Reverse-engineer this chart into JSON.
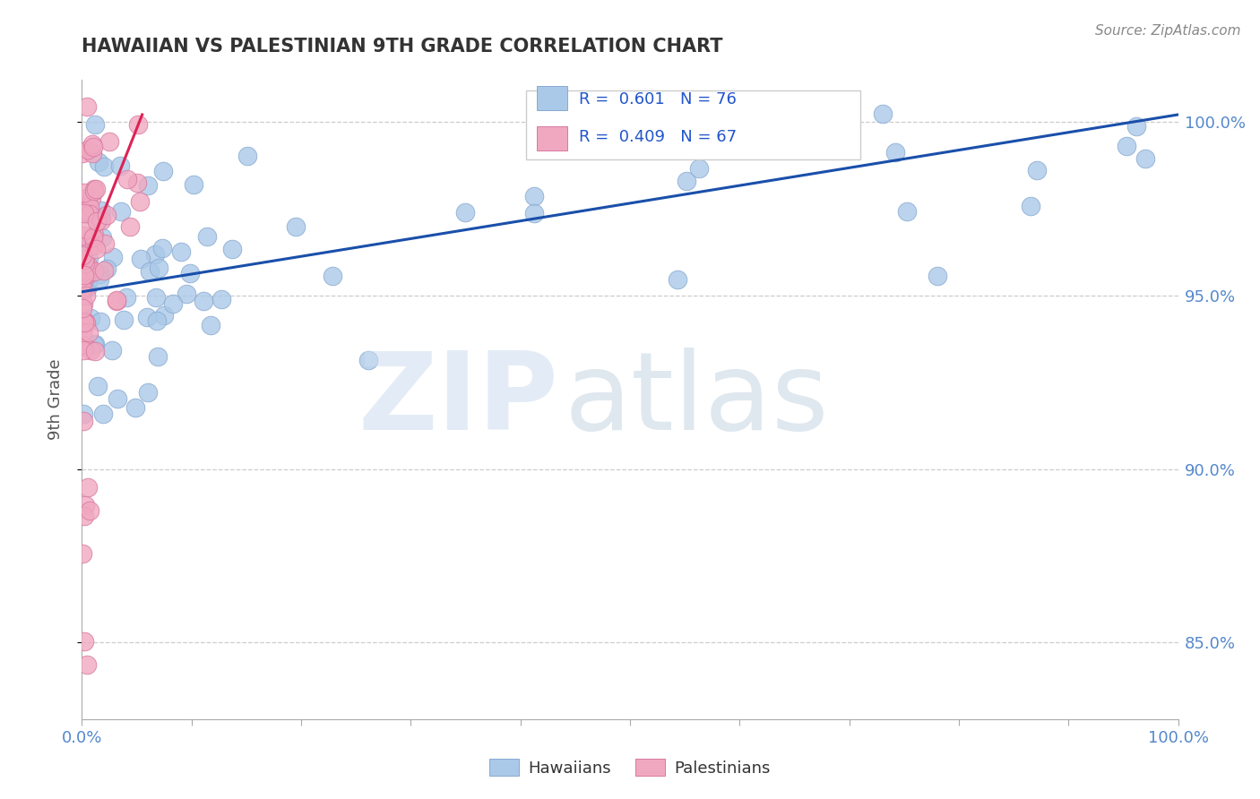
{
  "title": "HAWAIIAN VS PALESTINIAN 9TH GRADE CORRELATION CHART",
  "source": "Source: ZipAtlas.com",
  "ylabel": "9th Grade",
  "xlim": [
    0.0,
    1.0
  ],
  "ylim": [
    0.828,
    1.012
  ],
  "yticks": [
    0.85,
    0.9,
    0.95,
    1.0
  ],
  "ytick_labels": [
    "85.0%",
    "90.0%",
    "95.0%",
    "100.0%"
  ],
  "legend_blue_text": "R =  0.601   N = 76",
  "legend_pink_text": "R =  0.409   N = 67",
  "blue_scatter_color": "#aac8e8",
  "blue_edge_color": "#88aad0",
  "pink_scatter_color": "#f0a8c0",
  "pink_edge_color": "#d878a0",
  "trend_blue_color": "#1a4faa",
  "trend_pink_color": "#dd2255",
  "grid_color": "#cccccc",
  "axis_color": "#aaaaaa",
  "right_label_color": "#5588cc",
  "title_color": "#333333",
  "source_color": "#888888",
  "watermark_zip_color": "#ccddf0",
  "watermark_atlas_color": "#b8ccdd",
  "legend_r_color": "#2255cc",
  "bottom_legend_text_color": "#333333",
  "blue_trend_start_x": 0.0,
  "blue_trend_end_x": 1.0,
  "blue_trend_start_y": 0.951,
  "blue_trend_end_y": 1.002,
  "pink_trend_start_x": 0.0,
  "pink_trend_end_x": 0.055,
  "pink_trend_start_y": 0.958,
  "pink_trend_end_y": 1.002
}
